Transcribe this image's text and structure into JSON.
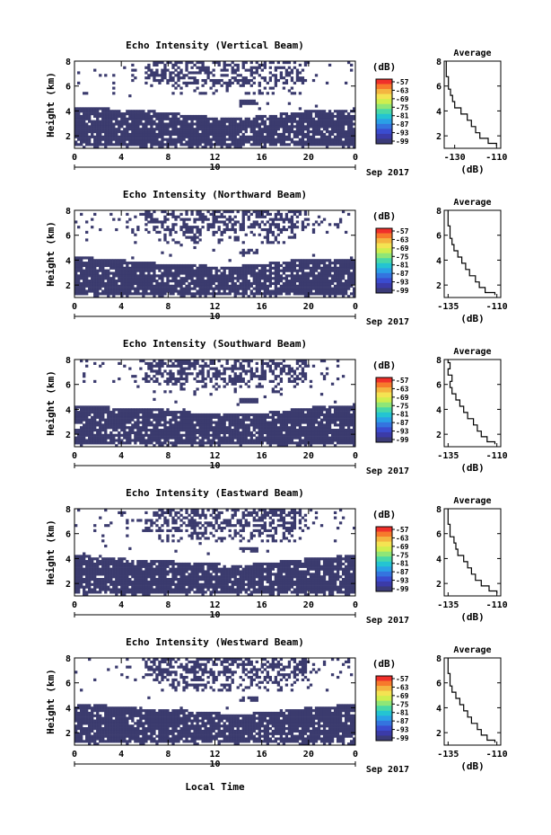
{
  "figure": {
    "xlabel": "Local Time",
    "colorbar_label": "(dB)",
    "colorbar_ticks": [
      "-57",
      "-63",
      "-69",
      "-75",
      "-81",
      "-87",
      "-93",
      "-99"
    ],
    "colorbar_colors": [
      "#f0302a",
      "#f77a2c",
      "#f4b540",
      "#f4e352",
      "#cfee4e",
      "#8fe677",
      "#49d8a7",
      "#24c4d2",
      "#2aa0e6",
      "#3474df",
      "#3a4ccf",
      "#3b3ba8",
      "#3b3b78"
    ],
    "average_title": "Average",
    "average_xlabel": "(dB)",
    "date_label": "Sep 2017",
    "date_day": "10",
    "mask_color": "#3b3b6e"
  },
  "chart_data": [
    {
      "type": "heatmap",
      "title": "Echo Intensity (Vertical Beam)",
      "ylabel": "Height (km)",
      "x_ticks": [
        "0",
        "4",
        "8",
        "12",
        "16",
        "20",
        "0"
      ],
      "y_ticks": [
        "2",
        "4",
        "6",
        "8"
      ],
      "xlim": [
        0,
        24
      ],
      "ylim": [
        1,
        8
      ],
      "lower_layer_top_km": [
        4.2,
        4.2,
        4.1,
        3.9,
        3.6,
        3.5,
        3.6,
        3.9,
        4.1,
        4.2
      ],
      "average_profile": {
        "x_ticks": [
          "-130",
          "-110"
        ],
        "xlim": [
          -135,
          -108
        ],
        "y_ticks": [
          "2",
          "4",
          "6",
          "8"
        ],
        "height_km": [
          1.2,
          1.6,
          2.0,
          2.5,
          3.0,
          3.5,
          4.0,
          4.5,
          5.0,
          5.5,
          6.0,
          6.5,
          7.0,
          7.5,
          8.0
        ],
        "db": [
          -110,
          -114,
          -118,
          -120,
          -122,
          -124,
          -127,
          -130,
          -131,
          -132,
          -133,
          -133,
          -134,
          -134,
          -134
        ]
      }
    },
    {
      "type": "heatmap",
      "title": "Echo Intensity (Northward Beam)",
      "ylabel": "Height (km)",
      "x_ticks": [
        "0",
        "4",
        "8",
        "12",
        "16",
        "20",
        "0"
      ],
      "y_ticks": [
        "2",
        "4",
        "6",
        "8"
      ],
      "xlim": [
        0,
        24
      ],
      "ylim": [
        1,
        8
      ],
      "lower_layer_top_km": [
        4.3,
        4.1,
        3.9,
        3.7,
        3.6,
        3.5,
        3.7,
        4.0,
        4.1,
        4.2
      ],
      "average_profile": {
        "x_ticks": [
          "-135",
          "-110"
        ],
        "xlim": [
          -137,
          -108
        ],
        "y_ticks": [
          "2",
          "4",
          "6",
          "8"
        ],
        "height_km": [
          1.2,
          1.6,
          2.0,
          2.5,
          3.0,
          3.5,
          4.0,
          4.5,
          5.0,
          5.5,
          6.0,
          6.5,
          7.0,
          7.5,
          8.0
        ],
        "db": [
          -111,
          -116,
          -119,
          -121,
          -124,
          -126,
          -128,
          -130,
          -132,
          -133,
          -134,
          -134,
          -135,
          -135,
          -135
        ]
      }
    },
    {
      "type": "heatmap",
      "title": "Echo Intensity (Southward Beam)",
      "ylabel": "Height (km)",
      "x_ticks": [
        "0",
        "4",
        "8",
        "12",
        "16",
        "20",
        "0"
      ],
      "y_ticks": [
        "2",
        "4",
        "6",
        "8"
      ],
      "xlim": [
        0,
        24
      ],
      "ylim": [
        1,
        8
      ],
      "lower_layer_top_km": [
        4.3,
        4.2,
        4.1,
        4.0,
        3.7,
        3.6,
        3.7,
        4.0,
        4.3,
        4.4
      ],
      "average_profile": {
        "x_ticks": [
          "-135",
          "-110"
        ],
        "xlim": [
          -137,
          -108
        ],
        "y_ticks": [
          "2",
          "4",
          "6",
          "8"
        ],
        "height_km": [
          1.2,
          1.6,
          2.0,
          2.5,
          3.0,
          3.5,
          4.0,
          4.5,
          5.0,
          5.5,
          6.0,
          6.5,
          7.0,
          7.5,
          8.0
        ],
        "db": [
          -111,
          -115,
          -118,
          -120,
          -122,
          -125,
          -127,
          -129,
          -131,
          -133,
          -134,
          -133,
          -135,
          -134,
          -135
        ]
      }
    },
    {
      "type": "heatmap",
      "title": "Echo Intensity (Eastward Beam)",
      "ylabel": "Height (km)",
      "x_ticks": [
        "0",
        "4",
        "8",
        "12",
        "16",
        "20",
        "0"
      ],
      "y_ticks": [
        "2",
        "4",
        "6",
        "8"
      ],
      "xlim": [
        0,
        24
      ],
      "ylim": [
        1,
        8
      ],
      "lower_layer_top_km": [
        4.3,
        4.1,
        3.9,
        3.8,
        3.7,
        3.5,
        3.6,
        3.9,
        4.1,
        4.3
      ],
      "average_profile": {
        "x_ticks": [
          "-135",
          "-110"
        ],
        "xlim": [
          -137,
          -108
        ],
        "y_ticks": [
          "2",
          "4",
          "6",
          "8"
        ],
        "height_km": [
          1.2,
          1.6,
          2.0,
          2.5,
          3.0,
          3.5,
          4.0,
          4.5,
          5.0,
          5.5,
          6.0,
          6.5,
          7.0,
          7.5,
          8.0
        ],
        "db": [
          -110,
          -114,
          -118,
          -121,
          -123,
          -125,
          -127,
          -130,
          -131,
          -132,
          -134,
          -134,
          -135,
          -135,
          -135
        ]
      }
    },
    {
      "type": "heatmap",
      "title": "Echo Intensity (Westward Beam)",
      "ylabel": "Height (km)",
      "x_ticks": [
        "0",
        "4",
        "8",
        "12",
        "16",
        "20",
        "0"
      ],
      "y_ticks": [
        "2",
        "4",
        "6",
        "8"
      ],
      "xlim": [
        0,
        24
      ],
      "ylim": [
        1,
        8
      ],
      "lower_layer_top_km": [
        4.3,
        4.2,
        4.0,
        3.9,
        3.7,
        3.5,
        3.6,
        3.9,
        4.1,
        4.3
      ],
      "average_profile": {
        "x_ticks": [
          "-135",
          "-110"
        ],
        "xlim": [
          -137,
          -108
        ],
        "y_ticks": [
          "2",
          "4",
          "6",
          "8"
        ],
        "height_km": [
          1.2,
          1.6,
          2.0,
          2.5,
          3.0,
          3.5,
          4.0,
          4.5,
          5.0,
          5.5,
          6.0,
          6.5,
          7.0,
          7.5,
          8.0
        ],
        "db": [
          -111,
          -115,
          -118,
          -120,
          -123,
          -125,
          -127,
          -129,
          -131,
          -133,
          -134,
          -134,
          -135,
          -135,
          -135
        ]
      }
    }
  ]
}
